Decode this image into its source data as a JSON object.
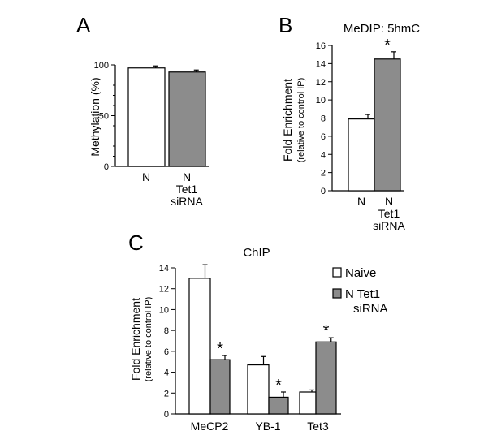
{
  "figure": {
    "panels": [
      "A",
      "B",
      "C"
    ]
  },
  "chart_data": [
    {
      "panel": "A",
      "type": "bar",
      "title": "",
      "xlabel": "",
      "ylabel": "Methylation (%)",
      "ylim": [
        0,
        100
      ],
      "yticks": [
        "0",
        "50",
        "100"
      ],
      "categories": [
        [
          "N"
        ],
        [
          "N",
          "Tet1",
          "siRNA"
        ]
      ],
      "values": [
        97,
        93
      ],
      "errors": [
        2,
        2
      ],
      "colors": [
        "#ffffff",
        "#8c8c8c"
      ],
      "significance": [
        "",
        ""
      ]
    },
    {
      "panel": "B",
      "type": "bar",
      "title": "MeDIP: 5hmC",
      "xlabel": "",
      "ylabel": "Fold Enrichment",
      "ylabel_sub": "(relative to control IP)",
      "ylim": [
        0,
        16
      ],
      "yticks": [
        "0",
        "2",
        "4",
        "6",
        "8",
        "10",
        "12",
        "14",
        "16"
      ],
      "categories": [
        [
          "N"
        ],
        [
          "N",
          "Tet1",
          "siRNA"
        ]
      ],
      "values": [
        7.9,
        14.5
      ],
      "errors": [
        0.5,
        0.8
      ],
      "colors": [
        "#ffffff",
        "#8c8c8c"
      ],
      "significance": [
        "",
        "*"
      ]
    },
    {
      "panel": "C",
      "type": "bar",
      "title": "ChIP",
      "xlabel": "",
      "ylabel": "Fold Enrichment",
      "ylabel_sub": "(relative to control IP)",
      "ylim": [
        0,
        14
      ],
      "yticks": [
        "0",
        "2",
        "4",
        "6",
        "8",
        "10",
        "12",
        "14"
      ],
      "categories": [
        "MeCP2",
        "YB-1",
        "Tet3"
      ],
      "series": [
        {
          "name": "Naive",
          "values": [
            13.0,
            4.7,
            2.1
          ],
          "errors": [
            1.3,
            0.8,
            0.2
          ],
          "color": "#ffffff",
          "significance": [
            "",
            "",
            ""
          ]
        },
        {
          "name": "N Tet1 siRNA",
          "values": [
            5.2,
            1.6,
            6.9
          ],
          "errors": [
            0.4,
            0.5,
            0.4
          ],
          "color": "#8c8c8c",
          "significance": [
            "*",
            "*",
            "*"
          ]
        }
      ],
      "legend": "top-right"
    }
  ]
}
